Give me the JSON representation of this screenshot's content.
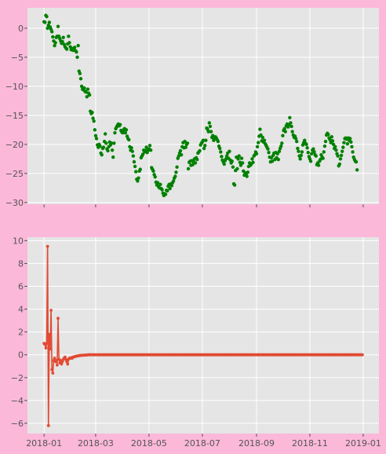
{
  "style": {
    "figure_bg": "#fbb8d9",
    "axes_bg": "#e5e5e5",
    "grid": "#ffffff",
    "tick_text": "#555555"
  },
  "chart_data": [
    {
      "type": "scatter",
      "color": "#008000",
      "title": "",
      "xlabel": "",
      "ylabel": "",
      "grid": true,
      "x_axis": {
        "type": "date",
        "range": [
          "2017-12-13",
          "2019-01-19"
        ],
        "tick_labels_visible": false
      },
      "ylim": [
        -30.3,
        3.5
      ],
      "yticks": [
        0,
        -5,
        -10,
        -15,
        -20,
        -25,
        -30
      ],
      "ytick_labels": [
        "0",
        "−5",
        "−10",
        "−15",
        "−20",
        "−25",
        "−30"
      ],
      "series": [
        {
          "x_start": "2018-01-01",
          "x_step_days": 1,
          "values": [
            1.1,
            1.0,
            2.2,
            2.0,
            0.0,
            0.5,
            1.0,
            0.2,
            -0.2,
            -0.6,
            -1.5,
            -2.2,
            -3.0,
            -2.5,
            -1.6,
            -1.4,
            0.3,
            -1.4,
            -1.8,
            -2.2,
            -2.6,
            -2.3,
            -1.6,
            -2.8,
            -3.2,
            -3.4,
            -3.6,
            -2.7,
            -1.4,
            -2.5,
            -3.2,
            -3.7,
            -3.5,
            -3.8,
            -3.5,
            -3.3,
            -3.9,
            -4.1,
            -5.0,
            -3.0,
            -7.4,
            -7.8,
            -8.7,
            -10.0,
            -10.5,
            -10.6,
            -10.3,
            -10.9,
            -11.0,
            -11.8,
            -10.5,
            -11.2,
            -11.5,
            -14.3,
            -14.7,
            -14.5,
            -15.5,
            -16.0,
            -17.5,
            -18.5,
            -19.0,
            -20.1,
            -20.5,
            -20.0,
            -20.3,
            -21.5,
            -21.8,
            -20.7,
            -20.5,
            -19.5,
            -18.2,
            -19.8,
            -20.8,
            -21.1,
            -20.4,
            -19.6,
            -20.1,
            -19.8,
            -21.0,
            -22.2,
            -19.8,
            -18.0,
            -17.3,
            -17.0,
            -16.7,
            -16.5,
            -16.8,
            -16.6,
            -17.6,
            -17.9,
            -18.0,
            -17.5,
            -17.3,
            -18.0,
            -17.5,
            -18.6,
            -19.0,
            -19.2,
            -20.4,
            -21.0,
            -20.6,
            -21.2,
            -22.0,
            -23.0,
            -23.8,
            -24.7,
            -26.0,
            -26.3,
            -25.8,
            -24.6,
            -24.3,
            -22.3,
            -22.0,
            -21.7,
            -21.0,
            -21.3,
            -21.1,
            -20.5,
            -21.4,
            -21.0,
            -20.8,
            -20.2,
            -21.0,
            -24.0,
            -24.3,
            -24.6,
            -25.2,
            -25.6,
            -26.5,
            -27.0,
            -26.6,
            -27.3,
            -27.5,
            -26.9,
            -27.6,
            -27.8,
            -28.4,
            -28.8,
            -28.5,
            -28.6,
            -27.9,
            -28.0,
            -27.2,
            -26.9,
            -27.6,
            -26.8,
            -27.1,
            -26.6,
            -26.3,
            -25.8,
            -25.5,
            -24.8,
            -23.9,
            -22.4,
            -22.0,
            -21.5,
            -21.1,
            -21.8,
            -20.4,
            -19.7,
            -20.6,
            -19.5,
            -20.5,
            -20.0,
            -19.8,
            -24.2,
            -23.1,
            -22.9,
            -23.6,
            -22.8,
            -23.5,
            -23.0,
            -22.5,
            -23.2,
            -22.3,
            -22.6,
            -21.5,
            -21.3,
            -21.1,
            -20.1,
            -19.8,
            -19.6,
            -19.3,
            -20.7,
            -20.2,
            -19.3,
            -17.2,
            -17.4,
            -17.8,
            -16.3,
            -16.9,
            -17.8,
            -18.8,
            -18.5,
            -19.3,
            -19.0,
            -18.7,
            -18.9,
            -19.2,
            -19.5,
            -20.3,
            -20.7,
            -21.3,
            -22.1,
            -22.7,
            -23.0,
            -23.4,
            -22.8,
            -22.5,
            -22.0,
            -21.5,
            -22.4,
            -21.2,
            -22.7,
            -23.2,
            -22.9,
            -23.9,
            -26.8,
            -27.0,
            -24.5,
            -22.2,
            -24.2,
            -22.5,
            -22.0,
            -23.1,
            -23.6,
            -22.4,
            -23.2,
            -24.6,
            -25.3,
            -24.9,
            -25.2,
            -25.5,
            -24.8,
            -23.8,
            -23.2,
            -23.6,
            -23.4,
            -22.5,
            -23.1,
            -22.0,
            -21.8,
            -21.3,
            -21.6,
            -20.4,
            -19.7,
            -18.6,
            -17.4,
            -18.4,
            -19.4,
            -18.8,
            -19.6,
            -19.3,
            -19.9,
            -20.2,
            -20.5,
            -20.8,
            -21.4,
            -22.2,
            -23.0,
            -22.3,
            -22.9,
            -21.9,
            -21.5,
            -22.6,
            -21.4,
            -22.3,
            -21.6,
            -22.6,
            -21.2,
            -20.7,
            -20.3,
            -19.8,
            -18.5,
            -17.6,
            -17.3,
            -17.8,
            -16.8,
            -16.5,
            -17.0,
            -16.6,
            -15.4,
            -16.3,
            -16.9,
            -17.8,
            -18.4,
            -18.8,
            -18.6,
            -19.0,
            -19.5,
            -20.7,
            -21.2,
            -22.0,
            -22.5,
            -21.9,
            -21.3,
            -20.1,
            -19.7,
            -19.3,
            -19.8,
            -20.0,
            -20.6,
            -21.4,
            -22.1,
            -22.5,
            -22.9,
            -21.6,
            -21.0,
            -20.8,
            -21.3,
            -21.8,
            -22.0,
            -23.5,
            -23.2,
            -23.6,
            -22.9,
            -22.6,
            -21.8,
            -22.2,
            -22.4,
            -21.3,
            -20.3,
            -19.5,
            -18.4,
            -18.1,
            -18.3,
            -18.9,
            -19.2,
            -19.7,
            -18.7,
            -19.4,
            -20.0,
            -20.7,
            -20.4,
            -21.0,
            -21.6,
            -22.0,
            -23.7,
            -23.4,
            -22.5,
            -21.9,
            -21.2,
            -20.5,
            -19.7,
            -19.0,
            -18.9,
            -19.1,
            -19.9,
            -18.9,
            -19.3,
            -19.0,
            -19.6,
            -20.4,
            -21.3,
            -22.2,
            -22.6,
            -22.9,
            -23.0,
            -24.4
          ]
        }
      ]
    },
    {
      "type": "line",
      "color": "#e24a33",
      "markers": true,
      "title": "",
      "xlabel": "",
      "ylabel": "",
      "grid": true,
      "x_axis": {
        "type": "date",
        "range": [
          "2017-12-13",
          "2019-01-19"
        ]
      },
      "xticks": [
        "2018-01-01",
        "2018-03-01",
        "2018-05-01",
        "2018-07-01",
        "2018-09-01",
        "2018-11-01",
        "2019-01-01"
      ],
      "xtick_labels": [
        "2018-01",
        "2018-03",
        "2018-05",
        "2018-07",
        "2018-09",
        "2018-11",
        "2019-01"
      ],
      "ylim": [
        -6.9,
        10.3
      ],
      "yticks": [
        10,
        8,
        6,
        4,
        2,
        0,
        -2,
        -4,
        -6
      ],
      "ytick_labels": [
        "10",
        "8",
        "6",
        "4",
        "2",
        "0",
        "−2",
        "−4",
        "−6"
      ],
      "series": [
        {
          "x_start": "2018-01-01",
          "x_step_days": 1,
          "values": [
            1.0,
            0.9,
            0.6,
            1.0,
            9.5,
            -6.2,
            1.8,
            0.5,
            3.9,
            -1.3,
            -1.6,
            -0.5,
            -0.3,
            -0.6,
            -0.5,
            -0.9,
            3.2,
            -0.4,
            -0.7,
            -0.5,
            -0.8,
            -0.6,
            -0.4,
            -0.3,
            -0.2,
            -0.4,
            -0.6,
            -0.8,
            -0.4,
            -0.3,
            -0.3,
            -0.25,
            -0.3,
            -0.2,
            -0.2,
            -0.15,
            -0.15,
            -0.12,
            -0.1,
            -0.1,
            -0.08,
            -0.06,
            -0.05,
            -0.05,
            -0.04,
            -0.04,
            -0.03,
            -0.03,
            -0.02,
            -0.02
          ],
          "tail_value": 0.0,
          "n_points": 365
        }
      ]
    }
  ]
}
